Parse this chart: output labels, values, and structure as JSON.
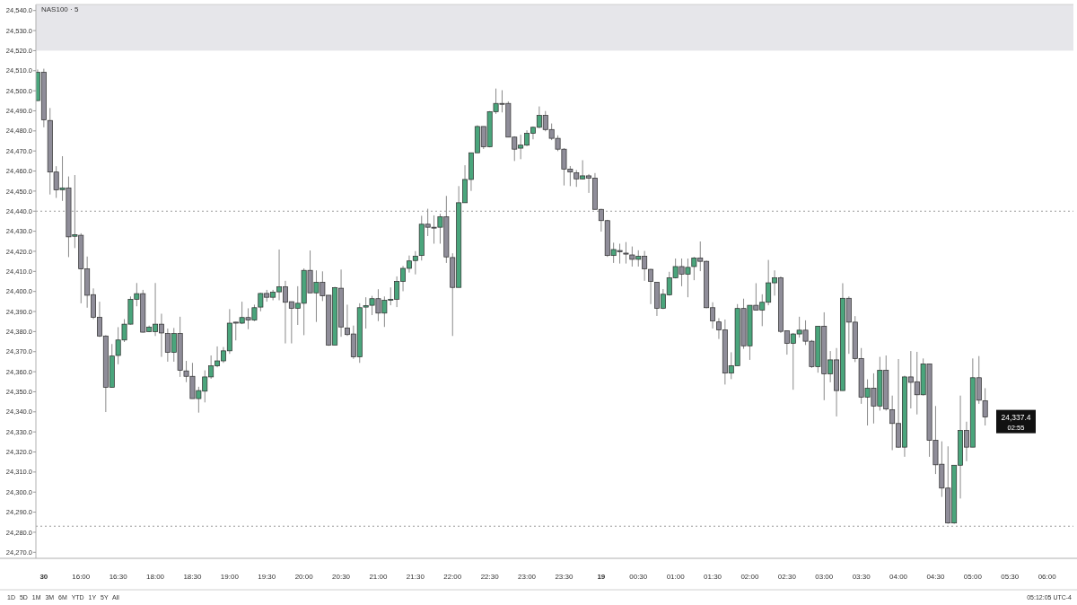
{
  "chart_data": {
    "type": "candlestick",
    "title": "NAS100 · 5",
    "categories": [
      null,
      "30",
      null,
      null,
      null,
      null,
      null,
      "16:00",
      null,
      null,
      null,
      null,
      null,
      "16:30",
      null,
      null,
      null,
      null,
      null,
      "18:00",
      null,
      null,
      null,
      null,
      null,
      "18:30",
      null,
      null,
      null,
      null,
      null,
      "19:00",
      null,
      null,
      null,
      null,
      null,
      "19:30",
      null,
      null,
      null,
      null,
      null,
      "20:00",
      null,
      null,
      null,
      null,
      null,
      "20:30",
      null,
      null,
      null,
      null,
      null,
      "21:00",
      null,
      null,
      null,
      null,
      null,
      "21:30",
      null,
      null,
      null,
      null,
      null,
      "22:00",
      null,
      null,
      null,
      null,
      null,
      "22:30",
      null,
      null,
      null,
      null,
      null,
      "23:00",
      null,
      null,
      null,
      null,
      null,
      "23:30",
      null,
      null,
      null,
      null,
      null,
      "19",
      null,
      null,
      null,
      null,
      null,
      "00:30",
      null,
      null,
      null,
      null,
      null,
      "01:00",
      null,
      null,
      null,
      null,
      null,
      "01:30",
      null,
      null,
      null,
      null,
      null,
      "02:00",
      null,
      null,
      null,
      null,
      null,
      "02:30",
      null,
      null,
      null,
      null,
      null,
      "03:00",
      null,
      null,
      null,
      null,
      null,
      "03:30",
      null,
      null,
      null,
      null,
      null,
      "04:00",
      null,
      null,
      null,
      null,
      null,
      "04:30",
      null,
      null,
      null,
      null,
      null,
      "05:00",
      null,
      null,
      null,
      null,
      null,
      "05:30",
      null,
      null,
      null,
      null,
      null,
      "06:00"
    ],
    "ohlc": [
      [
        24495.1,
        24510.6,
        24495.0,
        24509.2
      ],
      [
        24509.2,
        24511.0,
        24481.8,
        24485.5
      ],
      [
        24485.2,
        24491.4,
        24448.3,
        24459.5
      ],
      [
        24459.5,
        24462.4,
        24446.6,
        24450.6
      ],
      [
        24450.7,
        24467.4,
        24445.1,
        24451.6
      ],
      [
        24451.6,
        24457.3,
        24417.1,
        24427.2
      ],
      [
        24427.5,
        24458.0,
        24421.6,
        24428.3
      ],
      [
        24428.0,
        24429.0,
        24394.1,
        24411.2
      ],
      [
        24411.2,
        24417.4,
        24391.9,
        24398.1
      ],
      [
        24398.4,
        24401.5,
        24386.2,
        24387.1
      ],
      [
        24387.1,
        24394.9,
        24377.3,
        24377.8
      ],
      [
        24377.8,
        24378.2,
        24339.9,
        24352.2
      ],
      [
        24352.2,
        24373.8,
        24352.0,
        24367.8
      ],
      [
        24368.1,
        24382.2,
        24363.7,
        24375.8
      ],
      [
        24375.8,
        24386.2,
        24374.8,
        24383.7
      ],
      [
        24383.7,
        24397.5,
        24383.5,
        24396.1
      ],
      [
        24396.1,
        24404.2,
        24392.6,
        24398.9
      ],
      [
        24398.9,
        24400.8,
        24379.5,
        24379.7
      ],
      [
        24380.0,
        24383.0,
        24379.7,
        24382.2
      ],
      [
        24380.0,
        24404.2,
        24377.8,
        24383.7
      ],
      [
        24383.7,
        24388.9,
        24367.4,
        24379.3
      ],
      [
        24379.0,
        24381.5,
        24365.0,
        24369.6
      ],
      [
        24369.6,
        24381.8,
        24365.0,
        24379.0
      ],
      [
        24379.0,
        24387.4,
        24357.4,
        24360.7
      ],
      [
        24360.4,
        24365.4,
        24354.8,
        24357.7
      ],
      [
        24357.7,
        24364.4,
        24346.6,
        24346.6
      ],
      [
        24346.6,
        24352.5,
        24339.6,
        24350.6
      ],
      [
        24350.3,
        24360.7,
        24344.7,
        24357.4
      ],
      [
        24357.4,
        24368.1,
        24356.5,
        24362.9
      ],
      [
        24362.9,
        24372.6,
        24362.2,
        24365.4
      ],
      [
        24365.4,
        24372.3,
        24364.4,
        24370.4
      ],
      [
        24370.4,
        24391.2,
        24368.9,
        24384.2
      ],
      [
        24384.7,
        24384.8,
        24375.6,
        24384.2
      ],
      [
        24384.2,
        24394.9,
        24383.7,
        24387.0
      ],
      [
        24387.0,
        24391.6,
        24381.2,
        24385.7
      ],
      [
        24385.7,
        24393.4,
        24385.2,
        24391.9
      ],
      [
        24392.2,
        24399.3,
        24390.1,
        24399.0
      ],
      [
        24399.0,
        24400.8,
        24394.9,
        24397.1
      ],
      [
        24397.1,
        24400.8,
        24395.6,
        24399.6
      ],
      [
        24399.8,
        24420.9,
        24395.6,
        24402.3
      ],
      [
        24402.3,
        24405.3,
        24374.1,
        24394.6
      ],
      [
        24394.9,
        24394.9,
        24374.1,
        24391.6
      ],
      [
        24391.6,
        24402.6,
        24383.3,
        24394.1
      ],
      [
        24394.1,
        24411.5,
        24378.2,
        24410.5
      ],
      [
        24410.5,
        24420.4,
        24399.3,
        24399.3
      ],
      [
        24399.3,
        24410.5,
        24384.8,
        24404.5
      ],
      [
        24404.5,
        24410.0,
        24395.2,
        24397.8
      ],
      [
        24398.1,
        24398.1,
        24372.9,
        24373.3
      ],
      [
        24373.3,
        24402.3,
        24373.3,
        24401.9
      ],
      [
        24401.6,
        24410.9,
        24377.4,
        24382.3
      ],
      [
        24381.8,
        24393.4,
        24377.8,
        24378.5
      ],
      [
        24378.8,
        24383.0,
        24366.4,
        24367.4
      ],
      [
        24367.4,
        24394.1,
        24364.4,
        24391.9
      ],
      [
        24392.2,
        24397.1,
        24381.5,
        24392.9
      ],
      [
        24393.1,
        24397.8,
        24388.2,
        24396.4
      ],
      [
        24396.4,
        24401.1,
        24385.2,
        24389.2
      ],
      [
        24389.2,
        24397.5,
        24382.3,
        24395.6
      ],
      [
        24395.6,
        24402.0,
        24393.1,
        24396.1
      ],
      [
        24396.1,
        24407.5,
        24392.2,
        24405.0
      ],
      [
        24405.0,
        24412.7,
        24400.1,
        24411.5
      ],
      [
        24411.5,
        24417.9,
        24409.4,
        24415.2
      ],
      [
        24415.4,
        24420.1,
        24408.5,
        24417.6
      ],
      [
        24417.9,
        24437.7,
        24415.4,
        24433.5
      ],
      [
        24433.5,
        24441.2,
        24427.6,
        24432.0
      ],
      [
        24432.0,
        24437.9,
        24423.8,
        24432.0
      ],
      [
        24432.0,
        24438.7,
        24423.8,
        24437.2
      ],
      [
        24437.2,
        24447.6,
        24414.2,
        24417.2
      ],
      [
        24416.9,
        24419.0,
        24377.8,
        24402.0
      ],
      [
        24402.0,
        24452.5,
        24402.0,
        24444.2
      ],
      [
        24444.2,
        24462.9,
        24444.2,
        24455.8
      ],
      [
        24455.8,
        24469.1,
        24450.1,
        24469.1
      ],
      [
        24469.1,
        24482.8,
        24469.1,
        24482.2
      ],
      [
        24482.2,
        24482.2,
        24471.0,
        24472.1
      ],
      [
        24472.1,
        24489.9,
        24471.8,
        24489.6
      ],
      [
        24489.6,
        24501.1,
        24488.5,
        24493.7
      ],
      [
        24493.7,
        24500.3,
        24489.2,
        24493.7
      ],
      [
        24493.7,
        24494.7,
        24476.9,
        24476.9
      ],
      [
        24476.9,
        24477.3,
        24465.0,
        24470.9
      ],
      [
        24471.4,
        24478.1,
        24465.9,
        24472.9
      ],
      [
        24472.9,
        24480.3,
        24472.4,
        24478.8
      ],
      [
        24478.8,
        24482.2,
        24475.8,
        24481.8
      ],
      [
        24481.8,
        24492.2,
        24481.3,
        24487.7
      ],
      [
        24487.7,
        24489.9,
        24479.8,
        24480.7
      ],
      [
        24480.7,
        24483.7,
        24475.4,
        24476.3
      ],
      [
        24476.3,
        24477.8,
        24469.9,
        24470.9
      ],
      [
        24470.9,
        24471.4,
        24452.8,
        24461.0
      ],
      [
        24461.0,
        24462.5,
        24452.5,
        24459.5
      ],
      [
        24459.1,
        24460.5,
        24452.1,
        24456.1
      ],
      [
        24456.1,
        24465.4,
        24455.8,
        24457.6
      ],
      [
        24457.6,
        24458.5,
        24449.1,
        24456.5
      ],
      [
        24456.5,
        24459.0,
        24440.9,
        24440.9
      ],
      [
        24440.9,
        24441.2,
        24429.8,
        24435.3
      ],
      [
        24435.3,
        24435.7,
        24417.2,
        24417.9
      ],
      [
        24417.9,
        24424.3,
        24414.2,
        24420.9
      ],
      [
        24420.4,
        24423.8,
        24413.9,
        24419.8
      ],
      [
        24419.1,
        24424.6,
        24413.9,
        24418.6
      ],
      [
        24418.2,
        24422.4,
        24412.4,
        24416.0
      ],
      [
        24416.0,
        24420.5,
        24412.4,
        24417.5
      ],
      [
        24417.5,
        24420.2,
        24405.3,
        24411.3
      ],
      [
        24411.0,
        24411.3,
        24393.7,
        24405.0
      ],
      [
        24404.6,
        24404.6,
        24387.8,
        24391.6
      ],
      [
        24391.6,
        24401.2,
        24391.2,
        24398.6
      ],
      [
        24398.3,
        24409.8,
        24397.9,
        24406.8
      ],
      [
        24406.8,
        24416.4,
        24406.5,
        24412.4
      ],
      [
        24412.4,
        24416.4,
        24402.6,
        24408.6
      ],
      [
        24408.6,
        24416.4,
        24397.1,
        24412.0
      ],
      [
        24412.4,
        24417.2,
        24405.6,
        24416.7
      ],
      [
        24416.7,
        24424.9,
        24410.1,
        24415.0
      ],
      [
        24415.0,
        24415.4,
        24391.6,
        24391.9
      ],
      [
        24391.9,
        24394.6,
        24381.5,
        24385.3
      ],
      [
        24384.8,
        24386.7,
        24376.3,
        24380.8
      ],
      [
        24380.8,
        24386.0,
        24353.6,
        24359.3
      ],
      [
        24359.3,
        24369.7,
        24356.3,
        24363.0
      ],
      [
        24363.0,
        24393.7,
        24363.0,
        24391.5
      ],
      [
        24391.5,
        24396.4,
        24371.4,
        24372.9
      ],
      [
        24372.9,
        24393.1,
        24365.9,
        24393.1
      ],
      [
        24393.1,
        24404.1,
        24390.7,
        24390.7
      ],
      [
        24390.7,
        24398.6,
        24382.7,
        24394.6
      ],
      [
        24394.6,
        24415.7,
        24393.1,
        24404.3
      ],
      [
        24404.3,
        24410.5,
        24397.9,
        24406.8
      ],
      [
        24406.8,
        24407.5,
        24379.3,
        24380.1
      ],
      [
        24380.4,
        24380.4,
        24368.5,
        24374.1
      ],
      [
        24374.1,
        24379.3,
        24351.0,
        24378.8
      ],
      [
        24378.8,
        24387.4,
        24377.0,
        24380.7
      ],
      [
        24380.7,
        24385.6,
        24373.3,
        24375.2
      ],
      [
        24375.2,
        24375.8,
        24361.9,
        24362.5
      ],
      [
        24362.5,
        24382.7,
        24359.5,
        24382.7
      ],
      [
        24382.7,
        24389.6,
        24345.8,
        24358.9
      ],
      [
        24358.9,
        24370.3,
        24354.7,
        24365.9
      ],
      [
        24365.9,
        24371.8,
        24337.7,
        24350.6
      ],
      [
        24350.6,
        24404.1,
        24350.6,
        24396.6
      ],
      [
        24396.6,
        24397.5,
        24368.9,
        24384.7
      ],
      [
        24384.7,
        24387.7,
        24364.8,
        24366.6
      ],
      [
        24366.6,
        24371.8,
        24344.0,
        24347.3
      ],
      [
        24347.3,
        24356.2,
        24333.2,
        24351.8
      ],
      [
        24351.8,
        24359.2,
        24334.2,
        24342.9
      ],
      [
        24342.9,
        24367.4,
        24340.6,
        24360.7
      ],
      [
        24360.7,
        24368.1,
        24340.6,
        24341.4
      ],
      [
        24341.1,
        24348.1,
        24320.9,
        24334.2
      ],
      [
        24334.2,
        24366.3,
        24322.1,
        24322.4
      ],
      [
        24322.4,
        24358.0,
        24317.6,
        24357.4
      ],
      [
        24357.4,
        24370.3,
        24341.7,
        24354.7
      ],
      [
        24355.0,
        24369.9,
        24338.7,
        24348.5
      ],
      [
        24348.5,
        24366.6,
        24348.1,
        24363.9
      ],
      [
        24363.9,
        24363.9,
        24317.6,
        24325.8
      ],
      [
        24325.8,
        24342.9,
        24309.0,
        24313.6
      ],
      [
        24313.9,
        24325.3,
        24297.6,
        24302.0
      ],
      [
        24302.0,
        24322.8,
        24284.2,
        24284.6
      ],
      [
        24284.6,
        24313.4,
        24284.2,
        24313.4
      ],
      [
        24313.4,
        24348.1,
        24296.8,
        24330.7
      ],
      [
        24330.7,
        24335.1,
        24315.4,
        24322.4
      ],
      [
        24322.4,
        24366.6,
        24322.4,
        24357.0
      ],
      [
        24357.0,
        24367.8,
        24344.0,
        24345.8
      ],
      [
        24345.5,
        24351.8,
        24333.2,
        24337.4
      ],
      null,
      null,
      null,
      null,
      null,
      null,
      null,
      null,
      null,
      null
    ],
    "colors": [
      "#4aa57c",
      "#8f8d99",
      "#8f8d99",
      "#8f8d99",
      "#4aa57c",
      "#8f8d99",
      "#4aa57c",
      "#8f8d99",
      "#8f8d99",
      "#8f8d99",
      "#8f8d99",
      "#8f8d99",
      "#4aa57c",
      "#4aa57c",
      "#4aa57c",
      "#4aa57c",
      "#4aa57c",
      "#8f8d99",
      "#4aa57c",
      "#4aa57c",
      "#8f8d99",
      "#8f8d99",
      "#4aa57c",
      "#8f8d99",
      "#8f8d99",
      "#8f8d99",
      "#4aa57c",
      "#4aa57c",
      "#4aa57c",
      "#4aa57c",
      "#4aa57c",
      "#4aa57c",
      "#8f8d99",
      "#4aa57c",
      "#8f8d99",
      "#4aa57c",
      "#4aa57c",
      "#8f8d99",
      "#4aa57c",
      "#4aa57c",
      "#8f8d99",
      "#8f8d99",
      "#4aa57c",
      "#4aa57c",
      "#8f8d99",
      "#4aa57c",
      "#8f8d99",
      "#8f8d99",
      "#4aa57c",
      "#8f8d99",
      "#8f8d99",
      "#8f8d99",
      "#4aa57c",
      "#4aa57c",
      "#4aa57c",
      "#8f8d99",
      "#4aa57c",
      "#4aa57c",
      "#4aa57c",
      "#4aa57c",
      "#4aa57c",
      "#4aa57c",
      "#4aa57c",
      "#8f8d99",
      "#8f8d99",
      "#4aa57c",
      "#8f8d99",
      "#8f8d99",
      "#4aa57c",
      "#4aa57c",
      "#4aa57c",
      "#4aa57c",
      "#8f8d99",
      "#4aa57c",
      "#4aa57c",
      "#8f8d99",
      "#8f8d99",
      "#8f8d99",
      "#4aa57c",
      "#4aa57c",
      "#4aa57c",
      "#4aa57c",
      "#8f8d99",
      "#8f8d99",
      "#8f8d99",
      "#8f8d99",
      "#8f8d99",
      "#8f8d99",
      "#4aa57c",
      "#8f8d99",
      "#8f8d99",
      "#8f8d99",
      "#8f8d99",
      "#4aa57c",
      "#8f8d99",
      "#8f8d99",
      "#8f8d99",
      "#4aa57c",
      "#8f8d99",
      "#8f8d99",
      "#8f8d99",
      "#4aa57c",
      "#4aa57c",
      "#4aa57c",
      "#8f8d99",
      "#4aa57c",
      "#4aa57c",
      "#8f8d99",
      "#8f8d99",
      "#8f8d99",
      "#8f8d99",
      "#8f8d99",
      "#4aa57c",
      "#4aa57c",
      "#8f8d99",
      "#4aa57c",
      "#8f8d99",
      "#4aa57c",
      "#4aa57c",
      "#4aa57c",
      "#8f8d99",
      "#8f8d99",
      "#4aa57c",
      "#4aa57c",
      "#8f8d99",
      "#8f8d99",
      "#4aa57c",
      "#8f8d99",
      "#4aa57c",
      "#8f8d99",
      "#4aa57c",
      "#8f8d99",
      "#8f8d99",
      "#8f8d99",
      "#4aa57c",
      "#8f8d99",
      "#4aa57c",
      "#8f8d99",
      "#8f8d99",
      "#8f8d99",
      "#4aa57c",
      "#8f8d99",
      "#8f8d99",
      "#4aa57c",
      "#8f8d99",
      "#8f8d99",
      "#8f8d99",
      "#8f8d99",
      "#4aa57c",
      "#4aa57c",
      "#8f8d99",
      "#4aa57c",
      "#8f8d99",
      "#8f8d99",
      null,
      null,
      null,
      null,
      null,
      null,
      null,
      null,
      null,
      null
    ],
    "ylim": [
      24267,
      24543
    ],
    "yticks": [
      {
        "value": 24540,
        "label": "24,540.0"
      },
      {
        "value": 24530,
        "label": "24,530.0"
      },
      {
        "value": 24520,
        "label": "24,520.0"
      },
      {
        "value": 24510,
        "label": "24,510.0"
      },
      {
        "value": 24500,
        "label": "24,500.0"
      },
      {
        "value": 24490,
        "label": "24,490.0"
      },
      {
        "value": 24480,
        "label": "24,480.0"
      },
      {
        "value": 24470,
        "label": "24,470.0"
      },
      {
        "value": 24460,
        "label": "24,460.0"
      },
      {
        "value": 24450,
        "label": "24,450.0"
      },
      {
        "value": 24440,
        "label": "24,440.0"
      },
      {
        "value": 24430,
        "label": "24,430.0"
      },
      {
        "value": 24420,
        "label": "24,420.0"
      },
      {
        "value": 24410,
        "label": "24,410.0"
      },
      {
        "value": 24400,
        "label": "24,400.0"
      },
      {
        "value": 24390,
        "label": "24,390.0"
      },
      {
        "value": 24380,
        "label": "24,380.0"
      },
      {
        "value": 24370,
        "label": "24,370.0"
      },
      {
        "value": 24360,
        "label": "24,360.0"
      },
      {
        "value": 24350,
        "label": "24,350.0"
      },
      {
        "value": 24340,
        "label": "24,340.0"
      },
      {
        "value": 24330,
        "label": "24,330.0"
      },
      {
        "value": 24320,
        "label": "24,320.0"
      },
      {
        "value": 24310,
        "label": "24,310.0"
      },
      {
        "value": 24300,
        "label": "24,300.0"
      },
      {
        "value": 24290,
        "label": "24,290.0"
      },
      {
        "value": 24280,
        "label": "24,280.0"
      },
      {
        "value": 24270,
        "label": "24,270.0"
      }
    ],
    "bands": [
      {
        "axis": "y",
        "from": 24520,
        "to": 24543,
        "color": "#e6e6ea"
      }
    ],
    "ref_lines": [
      {
        "axis": "y",
        "value": 24440,
        "color": "#9a9a9a",
        "line_style": "dotted"
      },
      {
        "axis": "y",
        "value": 24283,
        "color": "#9a9a9a",
        "line_style": "dotted"
      }
    ],
    "annotations": [
      "24,337.4",
      "02:55",
      "05:12:05 UTC-4",
      "1D 5D 1M 3M 6M YTD 1Y 5Y All"
    ]
  }
}
